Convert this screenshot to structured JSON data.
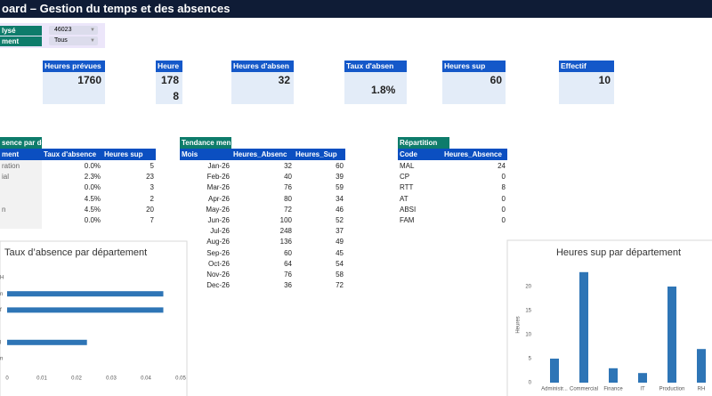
{
  "header": {
    "title": "oard – Gestion du temps et des absences"
  },
  "filters": [
    {
      "label": "lysé",
      "value": "46023"
    },
    {
      "label": "ment",
      "value": "Tous"
    }
  ],
  "kpis": [
    {
      "label": "Heures prévues",
      "value": 1760
    },
    {
      "label": "Heure",
      "value": 1788
    },
    {
      "label": "Heures d'absen",
      "value": 32
    },
    {
      "label": "Taux d'absen",
      "value": "1.8%"
    },
    {
      "label": "Heures sup",
      "value": 60
    },
    {
      "label": "Effectif",
      "value": 10
    }
  ],
  "tables": [
    {
      "title": "sence par dé",
      "columns": [
        "ment",
        "Taux d'absence",
        "Heures sup"
      ],
      "rows": [
        [
          "ration",
          "0.0%",
          5
        ],
        [
          "ial",
          "2.3%",
          23
        ],
        [
          null,
          "0.0%",
          3
        ],
        [
          null,
          "4.5%",
          2
        ],
        [
          "n",
          "4.5%",
          20
        ],
        [
          null,
          "0.0%",
          7
        ]
      ]
    },
    {
      "title": "Tendance men",
      "columns": [
        "Mois",
        "Heures_Absenc",
        "Heures_Sup"
      ],
      "rows": [
        [
          "Jan-26",
          32,
          60
        ],
        [
          "Feb-26",
          40,
          39
        ],
        [
          "Mar-26",
          76,
          59
        ],
        [
          "Apr-26",
          80,
          34
        ],
        [
          "May-26",
          72,
          46
        ],
        [
          "Jun-26",
          100,
          52
        ],
        [
          "Jul-26",
          248,
          37
        ],
        [
          "Aug-26",
          136,
          49
        ],
        [
          "Sep-26",
          60,
          45
        ],
        [
          "Oct-26",
          64,
          54
        ],
        [
          "Nov-26",
          76,
          58
        ],
        [
          "Dec-26",
          36,
          72
        ]
      ]
    },
    {
      "title": "Répartition",
      "columns": [
        "Code",
        "Heures_Absence"
      ],
      "rows": [
        [
          "MAL",
          24
        ],
        [
          "CP",
          0
        ],
        [
          "RTT",
          8
        ],
        [
          "AT",
          0
        ],
        [
          "ABSI",
          0
        ],
        [
          "FAM",
          0
        ]
      ]
    }
  ],
  "chart_data": [
    {
      "type": "hbar",
      "title": "Taux d’absence par département",
      "categories": [
        "H",
        "n",
        "f",
        null,
        "l",
        "n"
      ],
      "values": [
        0,
        0.045,
        0.045,
        0,
        0.023,
        0
      ],
      "color": "#2e75b6",
      "xlim": [
        0,
        0.05
      ],
      "xticks": [
        0,
        0.01,
        0.02,
        0.03,
        0.04,
        0.05
      ]
    },
    {
      "type": "bar",
      "title": "Heures sup par département",
      "y_label": "Heures",
      "categories": [
        "Administr...",
        "Commercial",
        "Finance",
        "IT",
        "Production",
        "RH"
      ],
      "values": [
        5,
        23,
        3,
        2,
        20,
        7
      ],
      "color": "#2e75b6",
      "ylim": [
        0,
        25
      ],
      "yticks": [
        0,
        5,
        10,
        15,
        20
      ]
    }
  ]
}
